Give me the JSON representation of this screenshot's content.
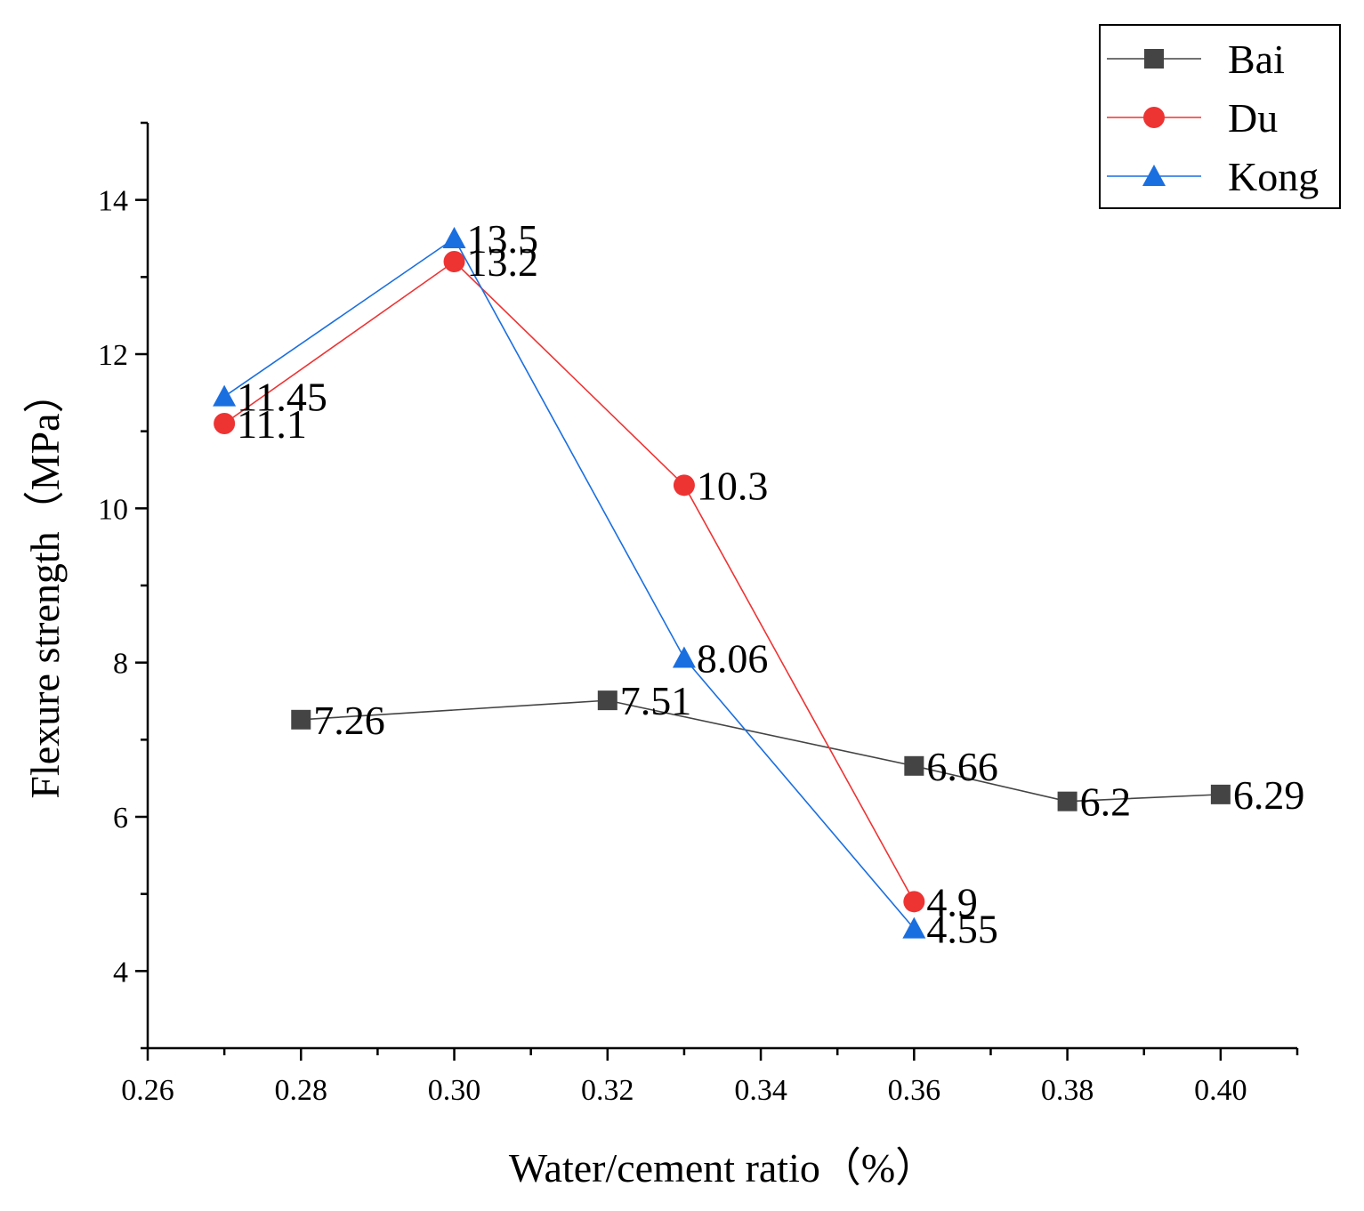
{
  "chart_data": {
    "type": "line",
    "title": "",
    "xlabel": "Water/cement ratio（%）",
    "ylabel": "Flexure strength（MPa）",
    "xlim": [
      0.26,
      0.41
    ],
    "ylim": [
      3,
      15
    ],
    "x_ticks": [
      0.26,
      0.28,
      0.3,
      0.32,
      0.34,
      0.36,
      0.38,
      0.4
    ],
    "x_tick_labels": [
      "0.26",
      "0.28",
      "0.30",
      "0.32",
      "0.34",
      "0.36",
      "0.38",
      "0.40"
    ],
    "y_ticks": [
      4,
      6,
      8,
      10,
      12,
      14
    ],
    "y_tick_labels": [
      "4",
      "6",
      "8",
      "10",
      "12",
      "14"
    ],
    "legend_position": "top-right",
    "series": [
      {
        "name": "Bai",
        "color": "#444444",
        "marker": "square",
        "x": [
          0.28,
          0.32,
          0.36,
          0.38,
          0.4
        ],
        "values": [
          7.26,
          7.51,
          6.66,
          6.2,
          6.29
        ],
        "labels": [
          "7.26",
          "7.51",
          "6.66",
          "6.2",
          "6.29"
        ]
      },
      {
        "name": "Du",
        "color": "#ee3333",
        "marker": "circle",
        "x": [
          0.27,
          0.3,
          0.33,
          0.36
        ],
        "values": [
          11.1,
          13.2,
          10.3,
          4.9
        ],
        "labels": [
          "11.1",
          "13.2",
          "10.3",
          "4.9"
        ]
      },
      {
        "name": "Kong",
        "color": "#1a6fe0",
        "marker": "triangle",
        "x": [
          0.27,
          0.3,
          0.33,
          0.36
        ],
        "values": [
          11.45,
          13.5,
          8.06,
          4.55
        ],
        "labels": [
          "11.45",
          "13.5",
          "8.06",
          "4.55"
        ]
      }
    ]
  }
}
